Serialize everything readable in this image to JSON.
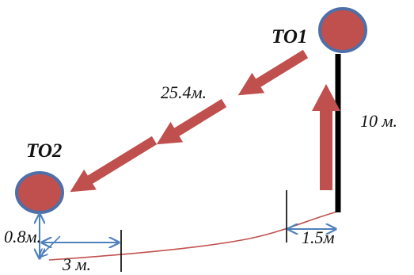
{
  "nodes": {
    "to1": {
      "label": "TO1",
      "fill": "#c0504d",
      "stroke": "#4f6fa8"
    },
    "to2": {
      "label": "TO2",
      "fill": "#c0504d",
      "stroke": "#4f6fa8"
    }
  },
  "dimensions": {
    "distance": "25.4м.",
    "mast_height": "10 м.",
    "to2_height": "0.8м.",
    "to2_offset": "3 м.",
    "to1_offset": "1.5м"
  },
  "colors": {
    "arrow": "#c0504d",
    "dimension_arrow": "#4f81bd",
    "curve": "#c0504d",
    "mast": "#000000"
  }
}
